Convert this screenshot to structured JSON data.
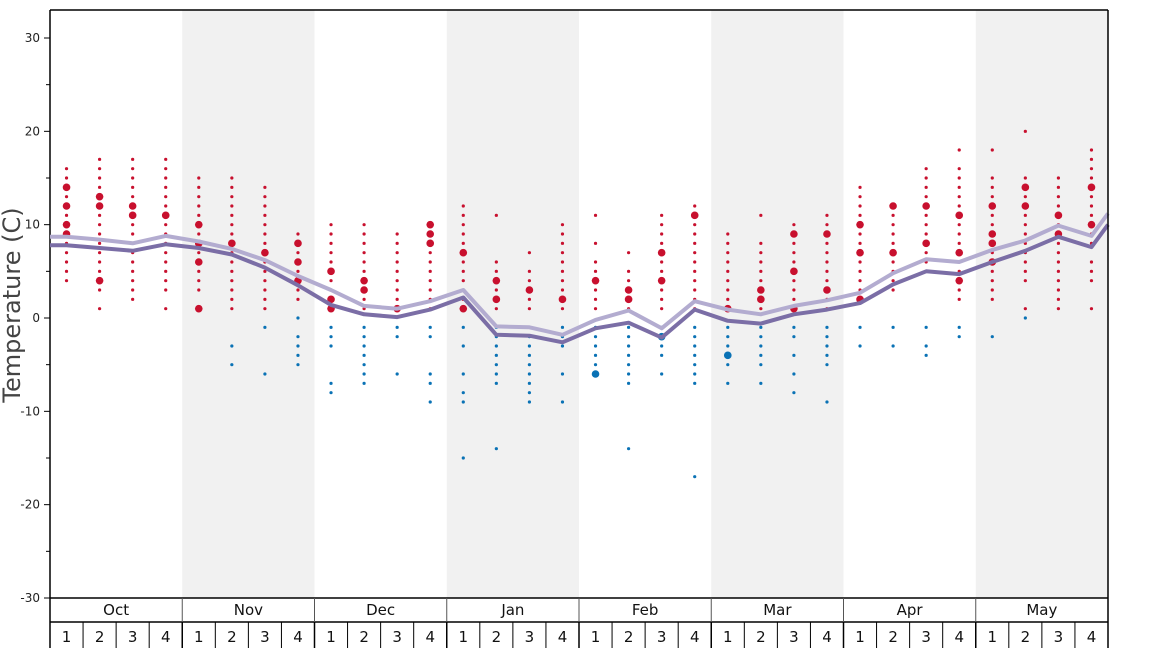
{
  "chart_data": {
    "type": "scatter",
    "ylabel": "Temperature (C)",
    "ylim": [
      -30,
      33
    ],
    "yticks": [
      -30,
      -20,
      -10,
      0,
      10,
      20,
      30
    ],
    "months": [
      "Oct",
      "Nov",
      "Dec",
      "Jan",
      "Feb",
      "Mar",
      "Apr",
      "May"
    ],
    "weeks": [
      "1",
      "2",
      "3",
      "4"
    ],
    "shaded_months": [
      "Nov",
      "Jan",
      "Mar",
      "May"
    ],
    "colors": {
      "warm_dot": "#c8102e",
      "cold_dot": "#0a72b5",
      "line_dark": "#7b6ea6",
      "line_light": "#b3acd0",
      "shade": "#f1f1f1",
      "axis": "#000000"
    },
    "series": [
      {
        "values": [
          7.8,
          7.5,
          7.2,
          7.9,
          7.5,
          6.8,
          5.4,
          3.5,
          1.4,
          0.4,
          0.1,
          0.9,
          2.2,
          -1.8,
          -1.9,
          -2.6,
          -1.1,
          -0.5,
          -2.1,
          0.9,
          -0.3,
          -0.6,
          0.4,
          0.9,
          1.6,
          3.6,
          5.0,
          4.7,
          6.0,
          7.2,
          8.7,
          7.6,
          10.0
        ]
      },
      {
        "values": [
          8.7,
          8.4,
          8.0,
          8.8,
          8.2,
          7.4,
          6.2,
          4.5,
          3.0,
          1.3,
          1.0,
          1.8,
          3.0,
          -0.9,
          -1.0,
          -1.8,
          -0.2,
          0.8,
          -1.1,
          1.8,
          0.9,
          0.4,
          1.3,
          1.9,
          2.7,
          4.8,
          6.3,
          6.0,
          7.3,
          8.3,
          9.9,
          8.8,
          11.2
        ]
      }
    ],
    "points": [
      {
        "x": 0,
        "warm": [
          16,
          15,
          14,
          13,
          12,
          11,
          10,
          9,
          8,
          7,
          6,
          5,
          4
        ],
        "cold": [],
        "big": [
          14,
          12,
          10,
          9
        ]
      },
      {
        "x": 1,
        "warm": [
          17,
          16,
          15,
          14,
          13,
          12,
          11,
          10,
          9,
          8,
          7,
          6,
          5,
          4,
          3,
          1
        ],
        "cold": [],
        "big": [
          13,
          12,
          4
        ]
      },
      {
        "x": 2,
        "warm": [
          17,
          16,
          15,
          14,
          13,
          12,
          11,
          10,
          9,
          8,
          7,
          6,
          5,
          4,
          3,
          2
        ],
        "cold": [],
        "big": [
          12,
          11
        ]
      },
      {
        "x": 3,
        "warm": [
          17,
          16,
          15,
          14,
          13,
          12,
          11,
          10,
          9,
          8,
          7,
          6,
          5,
          4,
          3,
          1
        ],
        "cold": [],
        "big": [
          11
        ]
      },
      {
        "x": 4,
        "warm": [
          15,
          14,
          13,
          12,
          11,
          10,
          9,
          8,
          7,
          6,
          5,
          4,
          3,
          1
        ],
        "cold": [],
        "big": [
          10,
          8,
          6,
          1
        ]
      },
      {
        "x": 5,
        "warm": [
          15,
          14,
          13,
          12,
          11,
          10,
          9,
          8,
          7,
          6,
          5,
          4,
          3,
          2,
          1
        ],
        "cold": [
          -3,
          -5
        ],
        "big": [
          8
        ]
      },
      {
        "x": 6,
        "warm": [
          14,
          13,
          12,
          11,
          10,
          9,
          8,
          7,
          6,
          5,
          4,
          3,
          2,
          1
        ],
        "cold": [
          -1,
          -6
        ],
        "big": [
          7
        ]
      },
      {
        "x": 7,
        "warm": [
          9,
          8,
          7,
          6,
          5,
          4,
          3,
          2
        ],
        "cold": [
          0,
          -2,
          -3,
          -4,
          -5
        ],
        "big": [
          8,
          6,
          4
        ]
      },
      {
        "x": 8,
        "warm": [
          10,
          9,
          8,
          7,
          6,
          5,
          4,
          3,
          2,
          1
        ],
        "cold": [
          -1,
          -2,
          -3,
          -7,
          -8
        ],
        "big": [
          5,
          2,
          1
        ]
      },
      {
        "x": 9,
        "warm": [
          10,
          9,
          8,
          7,
          6,
          5,
          4,
          3,
          2,
          1
        ],
        "cold": [
          -1,
          -2,
          -3,
          -4,
          -5,
          -6,
          -7
        ],
        "big": [
          4,
          3
        ]
      },
      {
        "x": 10,
        "warm": [
          9,
          8,
          7,
          6,
          5,
          4,
          3,
          2,
          1
        ],
        "cold": [
          -1,
          -2,
          -6
        ],
        "big": [
          1
        ]
      },
      {
        "x": 11,
        "warm": [
          10,
          9,
          8,
          7,
          6,
          5,
          4,
          3,
          2,
          1
        ],
        "cold": [
          -1,
          -2,
          -6,
          -7,
          -9
        ],
        "big": [
          10,
          9,
          8
        ]
      },
      {
        "x": 12,
        "warm": [
          12,
          11,
          10,
          9,
          8,
          7,
          6,
          5,
          4,
          3,
          2,
          1
        ],
        "cold": [
          -1,
          -3,
          -6,
          -8,
          -9,
          -15
        ],
        "big": [
          7,
          1
        ]
      },
      {
        "x": 13,
        "warm": [
          11,
          6,
          5,
          4,
          3,
          2,
          1
        ],
        "cold": [
          -1,
          -2,
          -3,
          -4,
          -5,
          -6,
          -7,
          -14
        ],
        "big": [
          4,
          2
        ]
      },
      {
        "x": 14,
        "warm": [
          7,
          5,
          4,
          3,
          2,
          1
        ],
        "cold": [
          -1,
          -2,
          -3,
          -4,
          -5,
          -6,
          -7,
          -8,
          -9
        ],
        "big": [
          3
        ]
      },
      {
        "x": 15,
        "warm": [
          10,
          9,
          8,
          7,
          6,
          5,
          4,
          3,
          2,
          1
        ],
        "cold": [
          -1,
          -2,
          -3,
          -6,
          -9
        ],
        "big": [
          2
        ]
      },
      {
        "x": 16,
        "warm": [
          11,
          8,
          6,
          5,
          4,
          3,
          2,
          1
        ],
        "cold": [
          -1,
          -2,
          -3,
          -4,
          -5,
          -6
        ],
        "big": [
          4,
          -6
        ]
      },
      {
        "x": 17,
        "warm": [
          7,
          5,
          4,
          3,
          2,
          1
        ],
        "cold": [
          -1,
          -2,
          -3,
          -4,
          -5,
          -6,
          -7,
          -14
        ],
        "big": [
          3,
          2
        ]
      },
      {
        "x": 18,
        "warm": [
          11,
          10,
          9,
          8,
          7,
          6,
          5,
          4,
          3,
          2,
          1
        ],
        "cold": [
          -1,
          -2,
          -3,
          -4,
          -6
        ],
        "big": [
          7,
          4,
          -2
        ]
      },
      {
        "x": 19,
        "warm": [
          12,
          11,
          10,
          9,
          8,
          7,
          6,
          5,
          4,
          3,
          2,
          1
        ],
        "cold": [
          -1,
          -2,
          -3,
          -4,
          -5,
          -6,
          -7,
          -17
        ],
        "big": [
          11
        ]
      },
      {
        "x": 20,
        "warm": [
          9,
          8,
          7,
          6,
          5,
          4,
          3,
          2,
          1
        ],
        "cold": [
          -1,
          -2,
          -3,
          -4,
          -5,
          -7
        ],
        "big": [
          1,
          -4
        ]
      },
      {
        "x": 21,
        "warm": [
          11,
          8,
          7,
          6,
          5,
          4,
          3,
          2,
          1
        ],
        "cold": [
          -1,
          -2,
          -3,
          -4,
          -5,
          -7
        ],
        "big": [
          3,
          2
        ]
      },
      {
        "x": 22,
        "warm": [
          10,
          9,
          8,
          7,
          6,
          5,
          4,
          3,
          2,
          1
        ],
        "cold": [
          -1,
          -2,
          -4,
          -6,
          -8
        ],
        "big": [
          9,
          5,
          1
        ]
      },
      {
        "x": 23,
        "warm": [
          11,
          10,
          9,
          8,
          7,
          6,
          5,
          4,
          3,
          2,
          1
        ],
        "cold": [
          -1,
          -2,
          -3,
          -4,
          -5,
          -9
        ],
        "big": [
          9,
          3
        ]
      },
      {
        "x": 24,
        "warm": [
          14,
          13,
          12,
          11,
          10,
          9,
          8,
          7,
          6,
          5,
          4,
          3,
          2
        ],
        "cold": [
          -1,
          -3
        ],
        "big": [
          10,
          7,
          2
        ]
      },
      {
        "x": 25,
        "warm": [
          12,
          11,
          10,
          9,
          8,
          7,
          6,
          5,
          4,
          3
        ],
        "cold": [
          -1,
          -3
        ],
        "big": [
          12,
          7
        ]
      },
      {
        "x": 26,
        "warm": [
          16,
          15,
          14,
          13,
          12,
          11,
          10,
          9,
          8,
          7,
          6,
          5
        ],
        "cold": [
          -1,
          -3,
          -4
        ],
        "big": [
          12,
          8
        ]
      },
      {
        "x": 27,
        "warm": [
          18,
          16,
          15,
          14,
          13,
          12,
          11,
          10,
          9,
          8,
          7,
          6,
          5,
          4,
          3,
          2
        ],
        "cold": [
          -1,
          -2
        ],
        "big": [
          11,
          7,
          4
        ]
      },
      {
        "x": 28,
        "warm": [
          18,
          15,
          14,
          13,
          12,
          11,
          10,
          9,
          8,
          7,
          6,
          5,
          4,
          3,
          2
        ],
        "cold": [
          -2
        ],
        "big": [
          12,
          9,
          8,
          6
        ]
      },
      {
        "x": 29,
        "warm": [
          20,
          15,
          14,
          13,
          12,
          11,
          10,
          9,
          8,
          7,
          6,
          5,
          4,
          1
        ],
        "cold": [
          0
        ],
        "big": [
          14,
          12
        ]
      },
      {
        "x": 30,
        "warm": [
          15,
          14,
          13,
          12,
          11,
          10,
          9,
          8,
          7,
          6,
          5,
          4,
          3,
          2,
          1
        ],
        "cold": [],
        "big": [
          11,
          9
        ]
      },
      {
        "x": 31,
        "warm": [
          18,
          17,
          16,
          15,
          14,
          13,
          12,
          11,
          10,
          9,
          8,
          6,
          5,
          4,
          1
        ],
        "cold": [],
        "big": [
          14,
          10
        ]
      }
    ]
  }
}
